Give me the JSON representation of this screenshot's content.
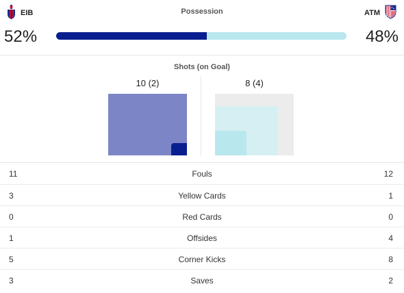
{
  "teams": {
    "home": {
      "abbr": "EIB",
      "possession": "52%",
      "possession_value": 52,
      "shots": "10 (2)",
      "shots_total": 10,
      "shots_on_goal": 2,
      "icon": "eibar-crest-icon"
    },
    "away": {
      "abbr": "ATM",
      "possession": "48%",
      "possession_value": 48,
      "shots": "8 (4)",
      "shots_total": 8,
      "shots_on_goal": 4,
      "icon": "atletico-crest-icon"
    }
  },
  "possession": {
    "title": "Possession"
  },
  "shots": {
    "title": "Shots (on Goal)"
  },
  "colors": {
    "home_primary": "#0a1f8f",
    "home_light": "#7c86c6",
    "away_primary": "#b9e7ee",
    "away_light": "#d6eff3",
    "box_bg": "#ececec"
  },
  "stats": [
    {
      "label": "Fouls",
      "home": "11",
      "away": "12"
    },
    {
      "label": "Yellow Cards",
      "home": "3",
      "away": "1"
    },
    {
      "label": "Red Cards",
      "home": "0",
      "away": "0"
    },
    {
      "label": "Offsides",
      "home": "1",
      "away": "4"
    },
    {
      "label": "Corner Kicks",
      "home": "5",
      "away": "8"
    },
    {
      "label": "Saves",
      "home": "3",
      "away": "2"
    }
  ]
}
